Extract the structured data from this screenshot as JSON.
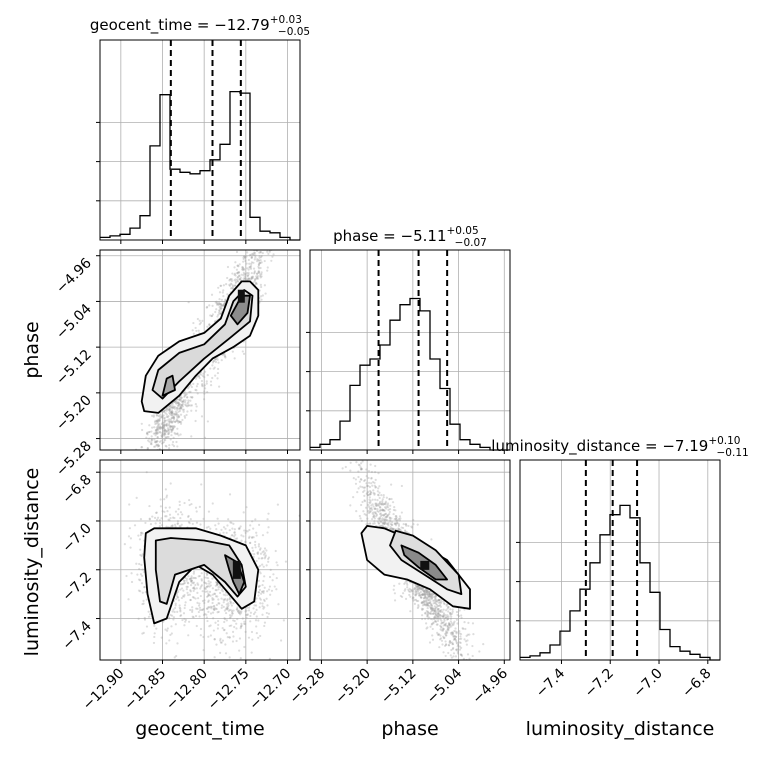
{
  "chart_data": {
    "type": "corner",
    "parameters": [
      "geocent_time",
      "phase",
      "luminosity_distance"
    ],
    "titles": [
      {
        "param": "geocent_time",
        "prefix": "geocent_time = ",
        "value": "−12.79",
        "plus": "+0.03",
        "minus": "−0.05"
      },
      {
        "param": "phase",
        "prefix": "phase = ",
        "value": "−5.11",
        "plus": "+0.05",
        "minus": "−0.07"
      },
      {
        "param": "luminosity_distance",
        "prefix": "luminosity_distance = ",
        "value": "−7.19",
        "plus": "+0.10",
        "minus": "−0.11"
      }
    ],
    "ranges": {
      "geocent_time": [
        -12.925,
        -12.685
      ],
      "phase": [
        -5.3,
        -4.95
      ],
      "luminosity_distance": [
        -7.57,
        -6.75
      ]
    },
    "ticks": {
      "geocent_time": [
        -12.9,
        -12.85,
        -12.8,
        -12.75,
        -12.7
      ],
      "phase": [
        -5.28,
        -5.2,
        -5.12,
        -5.04,
        -4.96
      ],
      "luminosity_distance": [
        -7.4,
        -7.2,
        -7.0,
        -6.8
      ]
    },
    "tick_labels": {
      "geocent_time": [
        "−12.90",
        "−12.85",
        "−12.80",
        "−12.75",
        "−12.70"
      ],
      "phase": [
        "−5.28",
        "−5.20",
        "−5.12",
        "−5.04",
        "−4.96"
      ],
      "luminosity_distance": [
        "−7.4",
        "−7.2",
        "−7.0",
        "−6.8"
      ]
    },
    "quantiles": {
      "geocent_time": [
        -12.84,
        -12.79,
        -12.756
      ],
      "phase": [
        -5.18,
        -5.11,
        -5.06
      ],
      "luminosity_distance": [
        -7.3,
        -7.19,
        -7.09
      ]
    },
    "histograms": {
      "geocent_time": {
        "edges_from": -12.925,
        "edges_to": -12.685,
        "counts": [
          0.01,
          0.02,
          0.03,
          0.07,
          0.15,
          0.6,
          0.93,
          0.45,
          0.43,
          0.42,
          0.44,
          0.51,
          0.61,
          0.95,
          0.94,
          0.14,
          0.05,
          0.04,
          0.01,
          0.0
        ]
      },
      "phase": {
        "edges_from": -5.3,
        "edges_to": -4.95,
        "counts": [
          0.01,
          0.03,
          0.06,
          0.18,
          0.41,
          0.54,
          0.58,
          0.67,
          0.83,
          0.93,
          0.97,
          0.89,
          0.58,
          0.39,
          0.16,
          0.06,
          0.03,
          0.01,
          0.0,
          0.0
        ]
      },
      "luminosity_distance": {
        "edges_from": -7.57,
        "edges_to": -6.75,
        "counts": [
          0.01,
          0.02,
          0.04,
          0.09,
          0.18,
          0.31,
          0.45,
          0.62,
          0.8,
          0.93,
          0.99,
          0.91,
          0.62,
          0.43,
          0.19,
          0.08,
          0.05,
          0.03,
          0.01,
          0.0
        ]
      }
    },
    "grid": true,
    "point_color": "#9e9e9e",
    "line_color": "#000000"
  }
}
